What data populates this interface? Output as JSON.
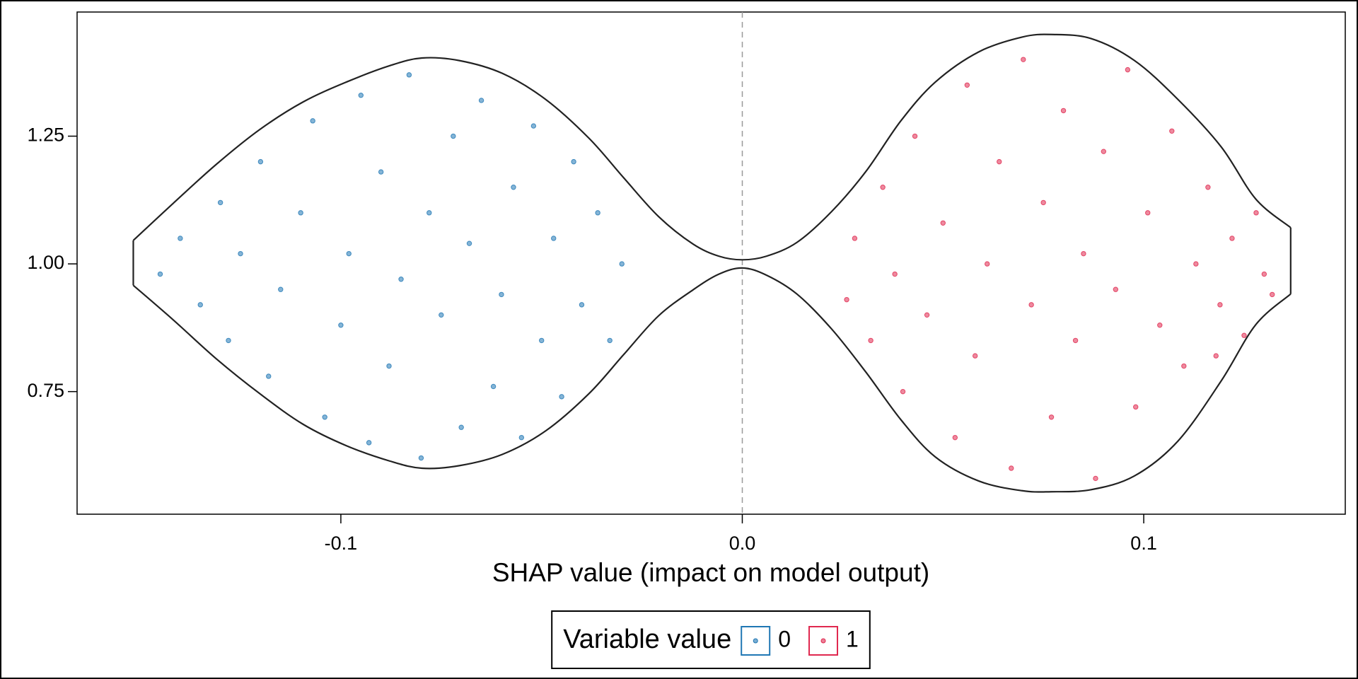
{
  "chart_data": {
    "type": "violin",
    "x_label": "SHAP value (impact on model output)",
    "xlim": [
      -0.1657,
      0.1502
    ],
    "ylim": [
      0.51,
      1.493
    ],
    "xticks": [
      -0.1,
      {
        "value": 0,
        "label": "0.0"
      },
      0.1
    ],
    "yticks": [
      0.75,
      {
        "value": 1,
        "label": "1.00"
      },
      1.25
    ],
    "vline": 0,
    "legend_title": "Variable value",
    "legend_position": "bottom",
    "outline": {
      "color": "#222222",
      "x": [
        -0.1517,
        -0.1417,
        -0.131,
        -0.1202,
        -0.1094,
        -0.0986,
        -0.0878,
        -0.0798,
        -0.0705,
        -0.0598,
        -0.049,
        -0.0382,
        -0.0296,
        -0.0209,
        -0.0123,
        -0.0058,
        0,
        0.006,
        0.0136,
        0.0222,
        0.0308,
        0.0395,
        0.0481,
        0.0589,
        0.0697,
        0.077,
        0.0869,
        0.0977,
        0.1085,
        0.1193,
        0.1279,
        0.1366
      ],
      "upper": [
        1.046,
        1.119,
        1.195,
        1.263,
        1.317,
        1.356,
        1.388,
        1.403,
        1.398,
        1.373,
        1.322,
        1.246,
        1.169,
        1.093,
        1.039,
        1.015,
        1.008,
        1.015,
        1.042,
        1.102,
        1.181,
        1.28,
        1.356,
        1.415,
        1.444,
        1.449,
        1.441,
        1.398,
        1.322,
        1.229,
        1.127,
        1.071
      ],
      "lower": [
        0.958,
        0.89,
        0.814,
        0.746,
        0.686,
        0.644,
        0.614,
        0.6,
        0.605,
        0.627,
        0.673,
        0.746,
        0.822,
        0.898,
        0.949,
        0.98,
        0.992,
        0.978,
        0.941,
        0.873,
        0.788,
        0.695,
        0.622,
        0.575,
        0.556,
        0.554,
        0.558,
        0.585,
        0.653,
        0.771,
        0.881,
        0.941
      ]
    },
    "series": [
      {
        "name": "0",
        "color": "#1f77b4",
        "x": [
          -0.145,
          -0.14,
          -0.135,
          -0.13,
          -0.128,
          -0.125,
          -0.12,
          -0.118,
          -0.115,
          -0.11,
          -0.107,
          -0.104,
          -0.1,
          -0.098,
          -0.095,
          -0.093,
          -0.09,
          -0.088,
          -0.085,
          -0.083,
          -0.08,
          -0.078,
          -0.075,
          -0.072,
          -0.07,
          -0.068,
          -0.065,
          -0.062,
          -0.06,
          -0.057,
          -0.055,
          -0.052,
          -0.05,
          -0.047,
          -0.045,
          -0.042,
          -0.04,
          -0.036,
          -0.033,
          -0.03
        ],
        "values": [
          0.98,
          1.05,
          0.92,
          1.12,
          0.85,
          1.02,
          1.2,
          0.78,
          0.95,
          1.1,
          1.28,
          0.7,
          0.88,
          1.02,
          1.33,
          0.65,
          1.18,
          0.8,
          0.97,
          1.37,
          0.62,
          1.1,
          0.9,
          1.25,
          0.68,
          1.04,
          1.32,
          0.76,
          0.94,
          1.15,
          0.66,
          1.27,
          0.85,
          1.05,
          0.74,
          1.2,
          0.92,
          1.1,
          0.85,
          1.0
        ]
      },
      {
        "name": "1",
        "color": "#e0284f",
        "x": [
          0.026,
          0.028,
          0.032,
          0.035,
          0.038,
          0.04,
          0.043,
          0.046,
          0.05,
          0.053,
          0.056,
          0.058,
          0.061,
          0.064,
          0.067,
          0.07,
          0.072,
          0.075,
          0.077,
          0.08,
          0.083,
          0.085,
          0.088,
          0.09,
          0.093,
          0.096,
          0.098,
          0.101,
          0.104,
          0.107,
          0.11,
          0.113,
          0.116,
          0.119,
          0.122,
          0.125,
          0.128,
          0.13,
          0.132,
          0.118
        ],
        "values": [
          0.93,
          1.05,
          0.85,
          1.15,
          0.98,
          0.75,
          1.25,
          0.9,
          1.08,
          0.66,
          1.35,
          0.82,
          1.0,
          1.2,
          0.6,
          1.4,
          0.92,
          1.12,
          0.7,
          1.3,
          0.85,
          1.02,
          0.58,
          1.22,
          0.95,
          1.38,
          0.72,
          1.1,
          0.88,
          1.26,
          0.8,
          1.0,
          1.15,
          0.92,
          1.05,
          0.86,
          1.1,
          0.98,
          0.94,
          0.82
        ]
      }
    ]
  }
}
